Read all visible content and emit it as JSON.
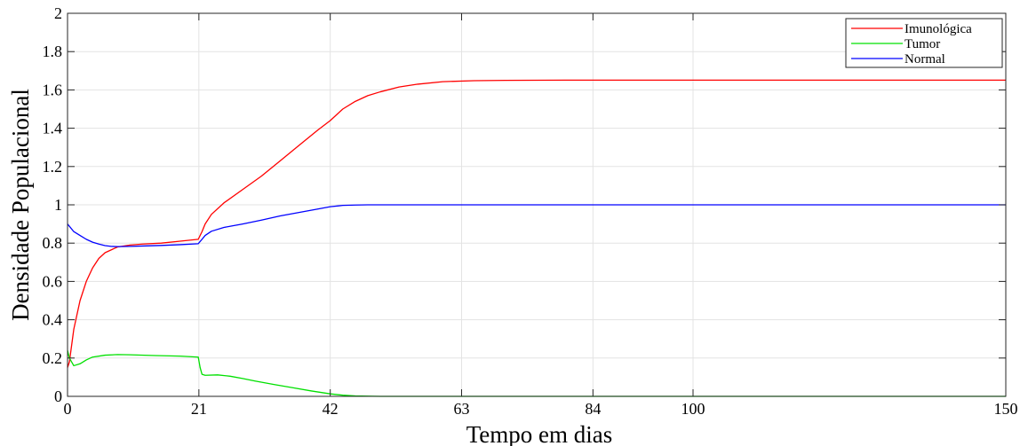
{
  "chart_data": {
    "type": "line",
    "title": "",
    "xlabel": "Tempo em dias",
    "ylabel": "Densidade Populacional",
    "xlim": [
      0,
      150
    ],
    "ylim": [
      0,
      2
    ],
    "xticks": [
      0,
      21,
      42,
      63,
      84,
      100,
      150
    ],
    "xtick_labels": [
      "0",
      "21",
      "42",
      "63",
      "84",
      "100",
      "150"
    ],
    "yticks": [
      0,
      0.2,
      0.4,
      0.6,
      0.8,
      1,
      1.2,
      1.4,
      1.6,
      1.8,
      2
    ],
    "ytick_labels": [
      "0",
      "0.2",
      "0.4",
      "0.6",
      "0.8",
      "1",
      "1.2",
      "1.4",
      "1.6",
      "1.8",
      "2"
    ],
    "grid": true,
    "legend_position": "top-right",
    "series": [
      {
        "name": "Imunológica",
        "color": "#ff0000",
        "x": [
          0,
          0.3,
          1,
          2,
          3,
          4,
          5,
          6,
          8,
          10,
          12,
          15,
          18,
          20.9,
          21.5,
          22,
          23,
          25,
          28,
          31,
          34,
          37,
          40,
          42,
          44,
          46,
          48,
          50,
          53,
          56,
          60,
          65,
          70,
          80,
          100,
          150
        ],
        "y": [
          0.15,
          0.18,
          0.35,
          0.5,
          0.6,
          0.67,
          0.72,
          0.75,
          0.78,
          0.79,
          0.795,
          0.8,
          0.81,
          0.82,
          0.86,
          0.9,
          0.95,
          1.01,
          1.08,
          1.15,
          1.23,
          1.31,
          1.39,
          1.44,
          1.5,
          1.54,
          1.57,
          1.59,
          1.615,
          1.63,
          1.643,
          1.648,
          1.65,
          1.651,
          1.651,
          1.651
        ]
      },
      {
        "name": "Tumor",
        "color": "#00e000",
        "x": [
          0,
          0.3,
          1,
          2,
          3,
          4,
          6,
          8,
          10,
          14,
          18,
          20.9,
          21.2,
          21.5,
          22,
          24,
          26,
          28,
          30,
          33,
          36,
          39,
          42,
          44,
          46,
          50,
          150
        ],
        "y": [
          0.24,
          0.2,
          0.16,
          0.17,
          0.19,
          0.205,
          0.215,
          0.218,
          0.217,
          0.213,
          0.21,
          0.205,
          0.15,
          0.115,
          0.11,
          0.112,
          0.105,
          0.093,
          0.08,
          0.062,
          0.045,
          0.028,
          0.013,
          0.006,
          0.002,
          0.0,
          0.0
        ]
      },
      {
        "name": "Normal",
        "color": "#0000ff",
        "x": [
          0,
          1,
          2,
          3,
          4,
          5,
          6,
          7,
          8,
          10,
          12,
          15,
          18,
          20.9,
          21.5,
          22,
          23,
          25,
          28,
          31,
          34,
          37,
          40,
          42,
          44,
          46,
          48,
          50,
          150
        ],
        "y": [
          0.9,
          0.86,
          0.84,
          0.82,
          0.805,
          0.795,
          0.787,
          0.783,
          0.782,
          0.783,
          0.785,
          0.788,
          0.792,
          0.797,
          0.82,
          0.84,
          0.862,
          0.882,
          0.9,
          0.92,
          0.942,
          0.96,
          0.978,
          0.99,
          0.997,
          0.999,
          1.0,
          1.0,
          1.0
        ]
      }
    ]
  }
}
